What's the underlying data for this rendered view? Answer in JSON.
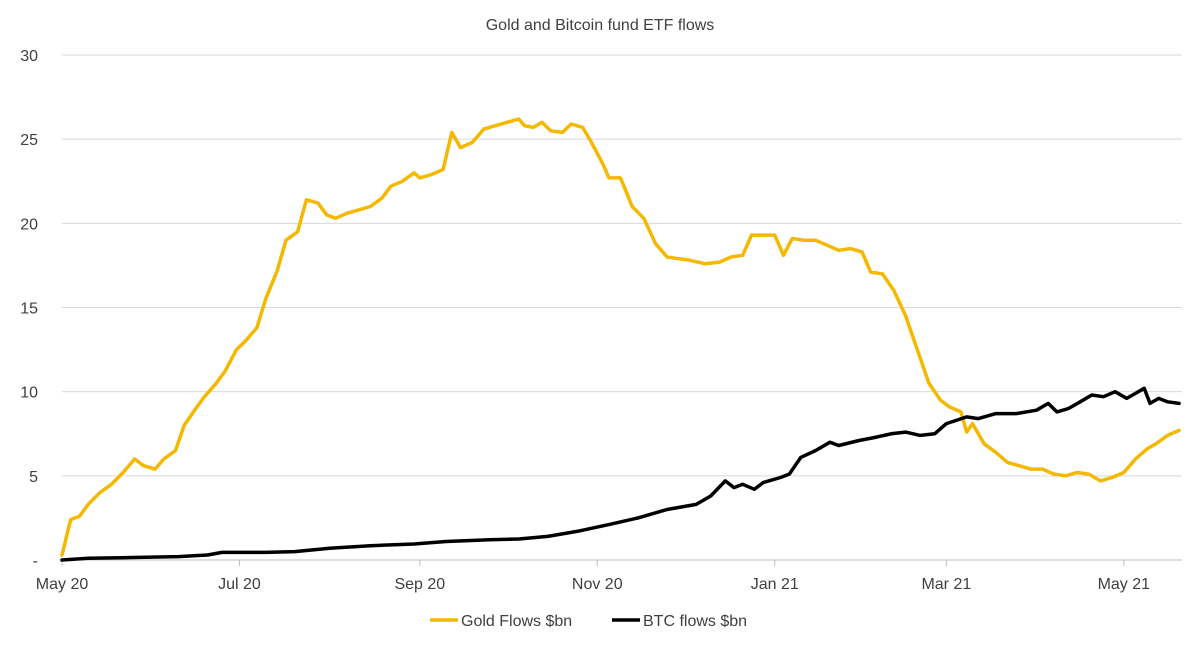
{
  "chart_data": {
    "type": "line",
    "title": "Gold and Bitcoin fund ETF flows",
    "xlabel": "",
    "ylabel": "",
    "ylim": [
      0,
      30
    ],
    "yticks": [
      {
        "value": 0,
        "label": "-"
      },
      {
        "value": 5,
        "label": "5"
      },
      {
        "value": 10,
        "label": "10"
      },
      {
        "value": 15,
        "label": "15"
      },
      {
        "value": 20,
        "label": "20"
      },
      {
        "value": 25,
        "label": "25"
      },
      {
        "value": 30,
        "label": "30"
      }
    ],
    "xticks": [
      {
        "date": "2020-05-01",
        "label": "May 20"
      },
      {
        "date": "2020-07-01",
        "label": "Jul 20"
      },
      {
        "date": "2020-09-01",
        "label": "Sep 20"
      },
      {
        "date": "2020-11-01",
        "label": "Nov 20"
      },
      {
        "date": "2021-01-01",
        "label": "Jan 21"
      },
      {
        "date": "2021-03-01",
        "label": "Mar 21"
      },
      {
        "date": "2021-05-01",
        "label": "May 21"
      }
    ],
    "xlim": [
      "2020-05-01",
      "2021-05-21"
    ],
    "grid": "horizontal",
    "legend": "bottom-center",
    "series": [
      {
        "name": "Gold Flows $bn",
        "color": "#F5B800",
        "points": [
          [
            "2020-05-01",
            0.3
          ],
          [
            "2020-05-04",
            2.4
          ],
          [
            "2020-05-07",
            2.6
          ],
          [
            "2020-05-10",
            3.3
          ],
          [
            "2020-05-14",
            4.0
          ],
          [
            "2020-05-18",
            4.5
          ],
          [
            "2020-05-22",
            5.2
          ],
          [
            "2020-05-26",
            6.0
          ],
          [
            "2020-05-29",
            5.6
          ],
          [
            "2020-06-02",
            5.4
          ],
          [
            "2020-06-05",
            6.0
          ],
          [
            "2020-06-09",
            6.5
          ],
          [
            "2020-06-12",
            8.0
          ],
          [
            "2020-06-16",
            9.0
          ],
          [
            "2020-06-19",
            9.7
          ],
          [
            "2020-06-23",
            10.5
          ],
          [
            "2020-06-26",
            11.2
          ],
          [
            "2020-06-30",
            12.5
          ],
          [
            "2020-07-03",
            13.0
          ],
          [
            "2020-07-07",
            13.8
          ],
          [
            "2020-07-10",
            15.5
          ],
          [
            "2020-07-14",
            17.2
          ],
          [
            "2020-07-17",
            19.0
          ],
          [
            "2020-07-21",
            19.5
          ],
          [
            "2020-07-24",
            21.4
          ],
          [
            "2020-07-28",
            21.2
          ],
          [
            "2020-07-31",
            20.5
          ],
          [
            "2020-08-03",
            20.3
          ],
          [
            "2020-08-07",
            20.6
          ],
          [
            "2020-08-11",
            20.8
          ],
          [
            "2020-08-15",
            21.0
          ],
          [
            "2020-08-19",
            21.5
          ],
          [
            "2020-08-22",
            22.2
          ],
          [
            "2020-08-26",
            22.5
          ],
          [
            "2020-08-30",
            23.0
          ],
          [
            "2020-09-01",
            22.7
          ],
          [
            "2020-09-05",
            22.9
          ],
          [
            "2020-09-09",
            23.2
          ],
          [
            "2020-09-12",
            25.4
          ],
          [
            "2020-09-15",
            24.5
          ],
          [
            "2020-09-19",
            24.8
          ],
          [
            "2020-09-23",
            25.6
          ],
          [
            "2020-09-27",
            25.8
          ],
          [
            "2020-10-01",
            26.0
          ],
          [
            "2020-10-05",
            26.2
          ],
          [
            "2020-10-07",
            25.8
          ],
          [
            "2020-10-10",
            25.7
          ],
          [
            "2020-10-13",
            26.0
          ],
          [
            "2020-10-16",
            25.5
          ],
          [
            "2020-10-20",
            25.4
          ],
          [
            "2020-10-23",
            25.9
          ],
          [
            "2020-10-27",
            25.7
          ],
          [
            "2020-10-30",
            24.8
          ],
          [
            "2020-11-03",
            23.5
          ],
          [
            "2020-11-05",
            22.7
          ],
          [
            "2020-11-09",
            22.7
          ],
          [
            "2020-11-13",
            21.0
          ],
          [
            "2020-11-17",
            20.3
          ],
          [
            "2020-11-21",
            18.8
          ],
          [
            "2020-11-25",
            18.0
          ],
          [
            "2020-11-29",
            17.9
          ],
          [
            "2020-12-03",
            17.8
          ],
          [
            "2020-12-08",
            17.6
          ],
          [
            "2020-12-13",
            17.7
          ],
          [
            "2020-12-17",
            18.0
          ],
          [
            "2020-12-21",
            18.1
          ],
          [
            "2020-12-24",
            19.3
          ],
          [
            "2020-12-28",
            19.3
          ],
          [
            "2021-01-01",
            19.3
          ],
          [
            "2021-01-04",
            18.1
          ],
          [
            "2021-01-07",
            19.1
          ],
          [
            "2021-01-11",
            19.0
          ],
          [
            "2021-01-15",
            19.0
          ],
          [
            "2021-01-19",
            18.7
          ],
          [
            "2021-01-23",
            18.4
          ],
          [
            "2021-01-27",
            18.5
          ],
          [
            "2021-01-31",
            18.3
          ],
          [
            "2021-02-03",
            17.1
          ],
          [
            "2021-02-07",
            17.0
          ],
          [
            "2021-02-11",
            16.0
          ],
          [
            "2021-02-15",
            14.5
          ],
          [
            "2021-02-19",
            12.5
          ],
          [
            "2021-02-23",
            10.5
          ],
          [
            "2021-02-27",
            9.5
          ],
          [
            "2021-03-02",
            9.1
          ],
          [
            "2021-03-06",
            8.8
          ],
          [
            "2021-03-08",
            7.6
          ],
          [
            "2021-03-10",
            8.1
          ],
          [
            "2021-03-14",
            6.9
          ],
          [
            "2021-03-18",
            6.4
          ],
          [
            "2021-03-22",
            5.8
          ],
          [
            "2021-03-26",
            5.6
          ],
          [
            "2021-03-30",
            5.4
          ],
          [
            "2021-04-03",
            5.4
          ],
          [
            "2021-04-07",
            5.1
          ],
          [
            "2021-04-11",
            5.0
          ],
          [
            "2021-04-15",
            5.2
          ],
          [
            "2021-04-19",
            5.1
          ],
          [
            "2021-04-23",
            4.7
          ],
          [
            "2021-04-27",
            4.9
          ],
          [
            "2021-05-01",
            5.2
          ],
          [
            "2021-05-05",
            6.0
          ],
          [
            "2021-05-09",
            6.6
          ],
          [
            "2021-05-12",
            6.9
          ],
          [
            "2021-05-16",
            7.4
          ],
          [
            "2021-05-20",
            7.7
          ]
        ]
      },
      {
        "name": "BTC flows $bn",
        "color": "#000000",
        "points": [
          [
            "2020-05-01",
            0.0
          ],
          [
            "2020-05-10",
            0.1
          ],
          [
            "2020-05-25",
            0.15
          ],
          [
            "2020-06-10",
            0.2
          ],
          [
            "2020-06-20",
            0.3
          ],
          [
            "2020-06-25",
            0.45
          ],
          [
            "2020-07-10",
            0.45
          ],
          [
            "2020-07-20",
            0.5
          ],
          [
            "2020-08-01",
            0.7
          ],
          [
            "2020-08-15",
            0.85
          ],
          [
            "2020-08-30",
            0.95
          ],
          [
            "2020-09-10",
            1.1
          ],
          [
            "2020-09-25",
            1.2
          ],
          [
            "2020-10-05",
            1.25
          ],
          [
            "2020-10-15",
            1.4
          ],
          [
            "2020-10-25",
            1.7
          ],
          [
            "2020-11-05",
            2.1
          ],
          [
            "2020-11-15",
            2.5
          ],
          [
            "2020-11-25",
            3.0
          ],
          [
            "2020-12-05",
            3.3
          ],
          [
            "2020-12-10",
            3.8
          ],
          [
            "2020-12-15",
            4.7
          ],
          [
            "2020-12-18",
            4.3
          ],
          [
            "2020-12-21",
            4.5
          ],
          [
            "2020-12-25",
            4.2
          ],
          [
            "2020-12-28",
            4.6
          ],
          [
            "2021-01-03",
            4.9
          ],
          [
            "2021-01-06",
            5.1
          ],
          [
            "2021-01-10",
            6.1
          ],
          [
            "2021-01-15",
            6.5
          ],
          [
            "2021-01-20",
            7.0
          ],
          [
            "2021-01-23",
            6.8
          ],
          [
            "2021-01-30",
            7.1
          ],
          [
            "2021-02-05",
            7.3
          ],
          [
            "2021-02-10",
            7.5
          ],
          [
            "2021-02-15",
            7.6
          ],
          [
            "2021-02-20",
            7.4
          ],
          [
            "2021-02-25",
            7.5
          ],
          [
            "2021-03-01",
            8.1
          ],
          [
            "2021-03-08",
            8.5
          ],
          [
            "2021-03-12",
            8.4
          ],
          [
            "2021-03-18",
            8.7
          ],
          [
            "2021-03-25",
            8.7
          ],
          [
            "2021-04-01",
            8.9
          ],
          [
            "2021-04-05",
            9.3
          ],
          [
            "2021-04-08",
            8.8
          ],
          [
            "2021-04-12",
            9.0
          ],
          [
            "2021-04-16",
            9.4
          ],
          [
            "2021-04-20",
            9.8
          ],
          [
            "2021-04-24",
            9.7
          ],
          [
            "2021-04-28",
            10.0
          ],
          [
            "2021-05-02",
            9.6
          ],
          [
            "2021-05-05",
            9.9
          ],
          [
            "2021-05-08",
            10.2
          ],
          [
            "2021-05-10",
            9.3
          ],
          [
            "2021-05-13",
            9.6
          ],
          [
            "2021-05-16",
            9.4
          ],
          [
            "2021-05-20",
            9.3
          ]
        ]
      }
    ]
  }
}
